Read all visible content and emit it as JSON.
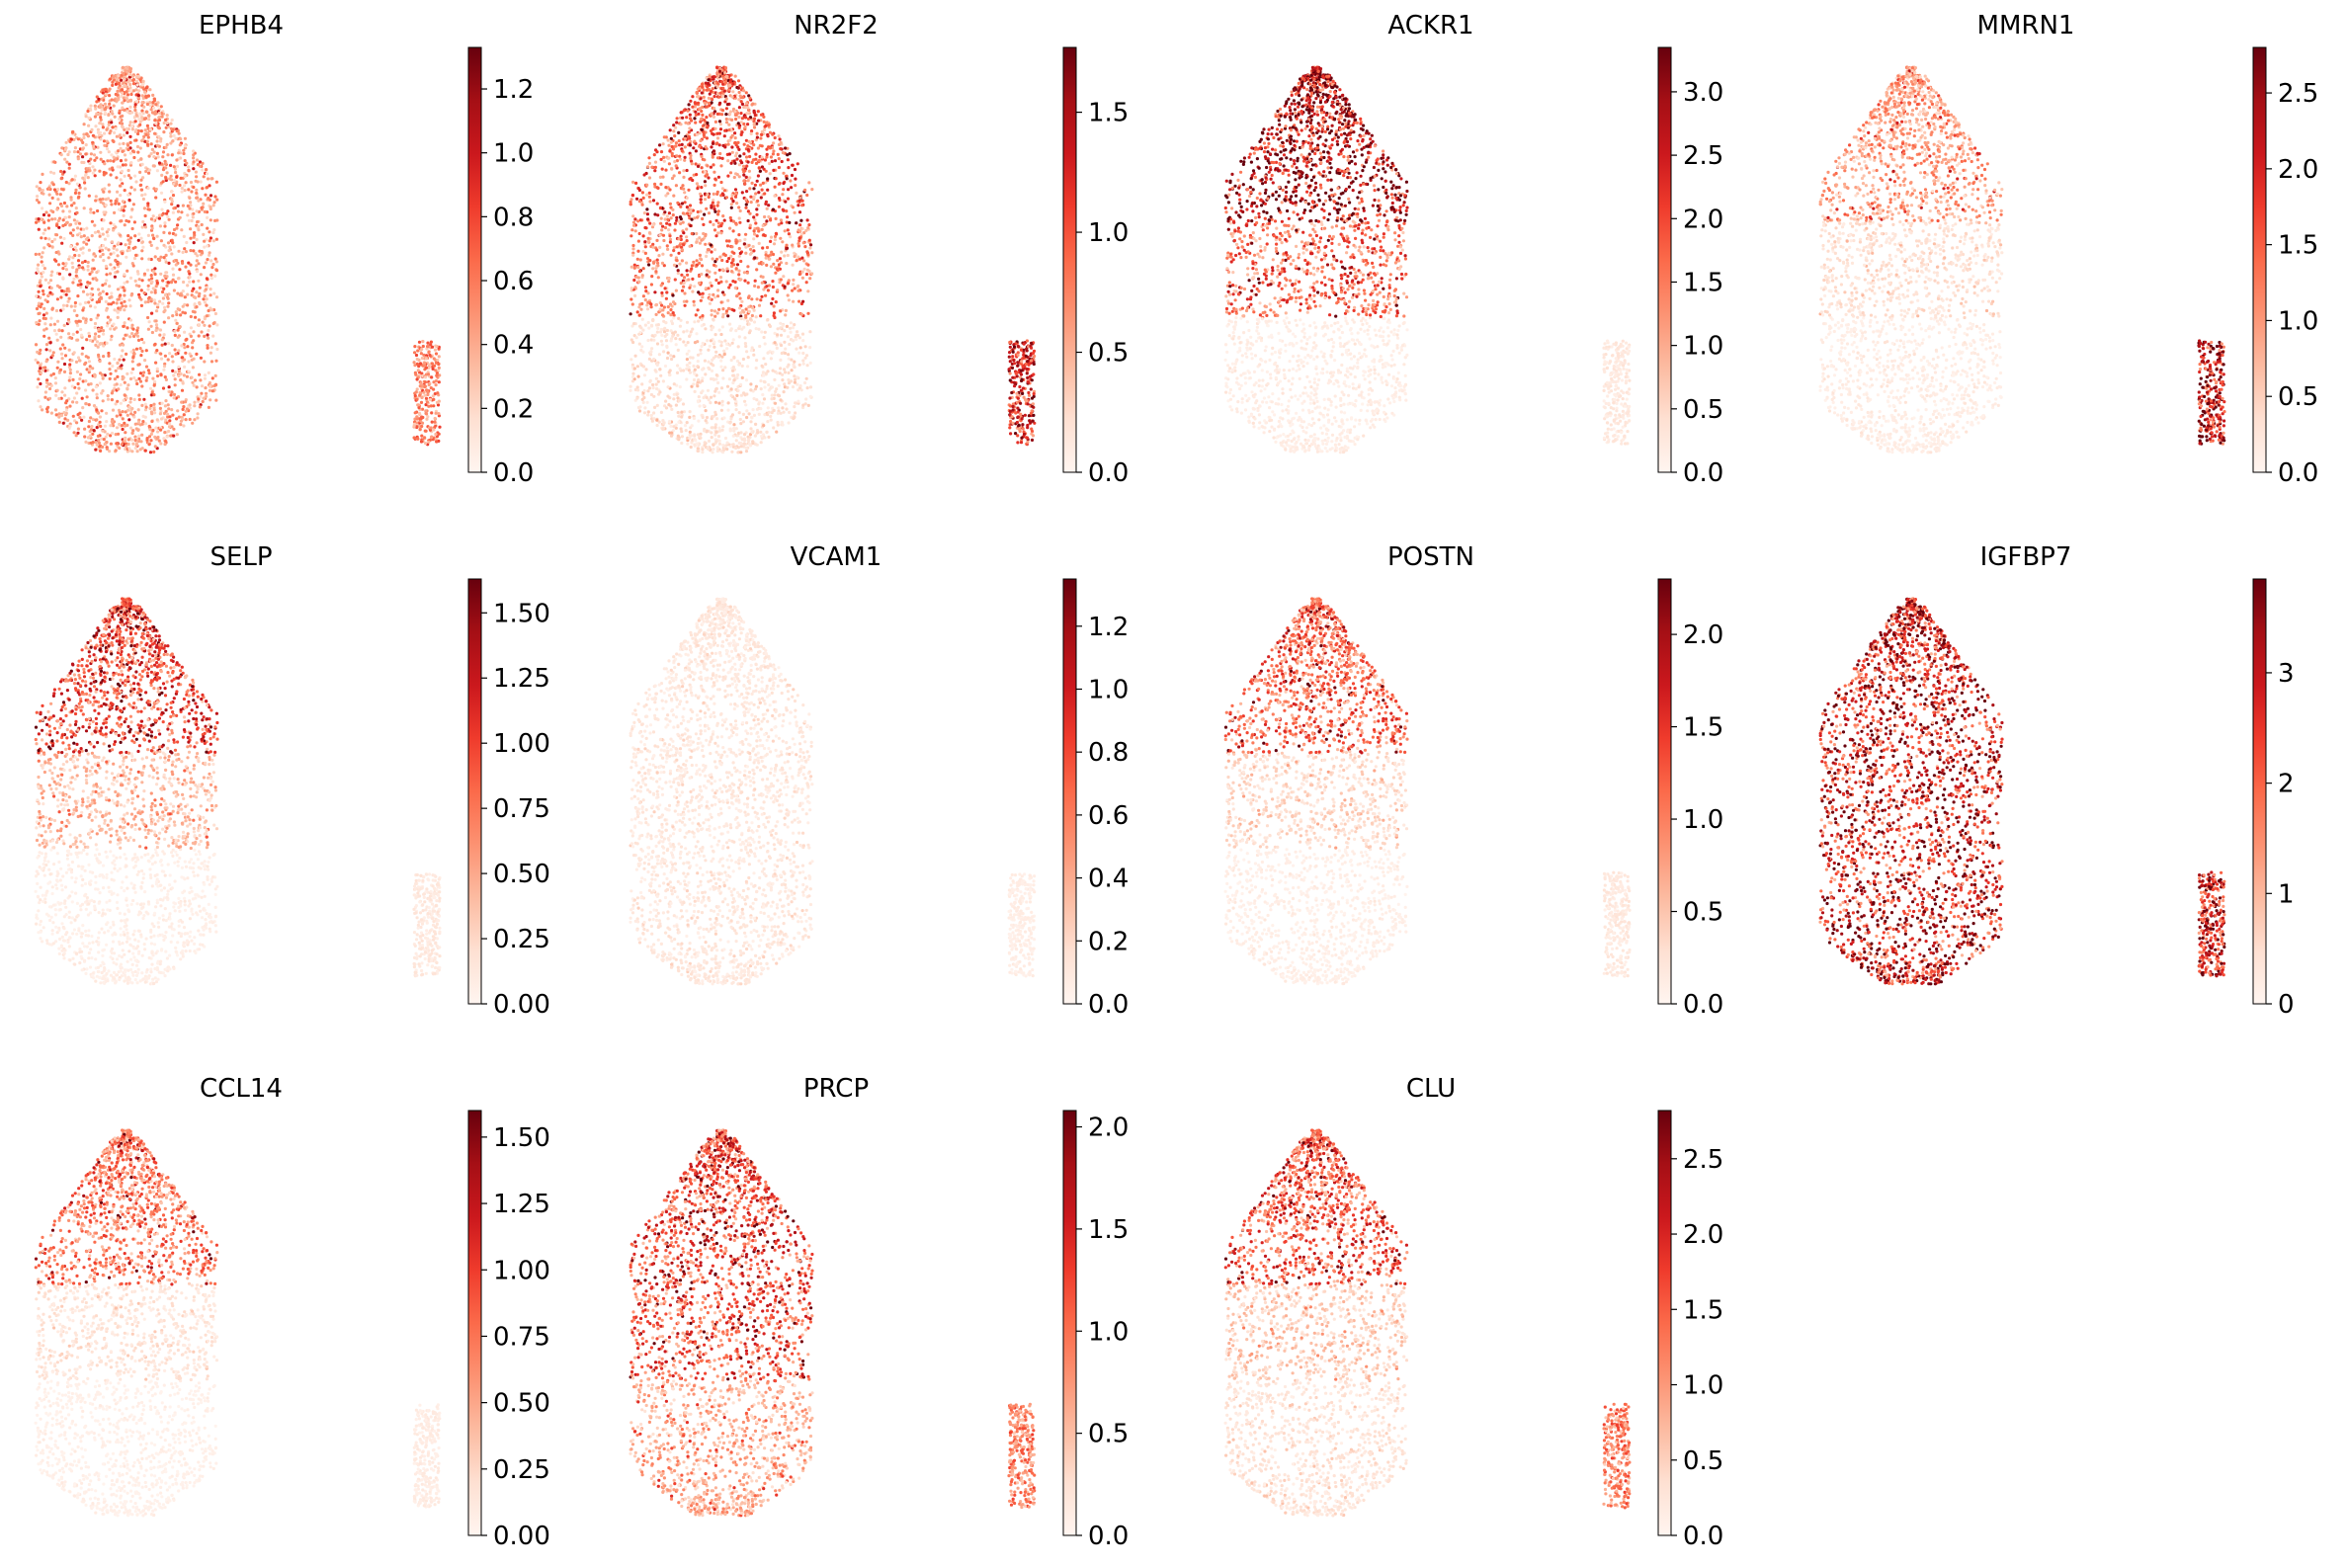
{
  "chart_data": {
    "type": "scatter",
    "colormap": [
      "#fff5f0",
      "#fee0d2",
      "#fcbba1",
      "#fc9272",
      "#fb6a4a",
      "#ef3b2c",
      "#cb181d",
      "#a50f15",
      "#67000d"
    ],
    "axes_visible": false,
    "grid": false,
    "layout_cols": 4,
    "panels": [
      {
        "title": "EPHB4",
        "colorbar_max": 1.33,
        "ticks": [
          0.0,
          0.2,
          0.4,
          0.6,
          0.8,
          1.0,
          1.2
        ],
        "tick_labels": [
          "0.0",
          "0.2",
          "0.4",
          "0.6",
          "0.8",
          "1.0",
          "1.2"
        ],
        "hotspots": [
          {
            "region": "whole",
            "level": 0.35
          }
        ],
        "small_cluster_level": 0.45
      },
      {
        "title": "NR2F2",
        "colorbar_max": 1.77,
        "ticks": [
          0.0,
          0.5,
          1.0,
          1.5
        ],
        "tick_labels": [
          "0.0",
          "0.5",
          "1.0",
          "1.5"
        ],
        "hotspots": [
          {
            "region": "top",
            "level": 0.55
          },
          {
            "region": "middle",
            "level": 0.45
          },
          {
            "region": "bottom",
            "level": 0.12
          }
        ],
        "small_cluster_level": 0.75
      },
      {
        "title": "ACKR1",
        "colorbar_max": 3.35,
        "ticks": [
          0.0,
          0.5,
          1.0,
          1.5,
          2.0,
          2.5,
          3.0
        ],
        "tick_labels": [
          "0.0",
          "0.5",
          "1.0",
          "1.5",
          "2.0",
          "2.5",
          "3.0"
        ],
        "hotspots": [
          {
            "region": "top",
            "level": 0.85
          },
          {
            "region": "middle",
            "level": 0.5
          },
          {
            "region": "bottom",
            "level": 0.05
          }
        ],
        "small_cluster_level": 0.08
      },
      {
        "title": "MMRN1",
        "colorbar_max": 2.8,
        "ticks": [
          0.0,
          0.5,
          1.0,
          1.5,
          2.0,
          2.5
        ],
        "tick_labels": [
          "0.0",
          "0.5",
          "1.0",
          "1.5",
          "2.0",
          "2.5"
        ],
        "hotspots": [
          {
            "region": "top",
            "level": 0.35
          },
          {
            "region": "middle",
            "level": 0.12
          },
          {
            "region": "bottom",
            "level": 0.05
          }
        ],
        "small_cluster_level": 0.85
      },
      {
        "title": "SELP",
        "colorbar_max": 1.63,
        "ticks": [
          0.0,
          0.25,
          0.5,
          0.75,
          1.0,
          1.25,
          1.5
        ],
        "tick_labels": [
          "0.00",
          "0.25",
          "0.50",
          "0.75",
          "1.00",
          "1.25",
          "1.50"
        ],
        "hotspots": [
          {
            "region": "top",
            "level": 0.6
          },
          {
            "region": "middle",
            "level": 0.25
          },
          {
            "region": "bottom",
            "level": 0.04
          }
        ],
        "small_cluster_level": 0.08
      },
      {
        "title": "VCAM1",
        "colorbar_max": 1.35,
        "ticks": [
          0.0,
          0.2,
          0.4,
          0.6,
          0.8,
          1.0,
          1.2
        ],
        "tick_labels": [
          "0.0",
          "0.2",
          "0.4",
          "0.6",
          "0.8",
          "1.0",
          "1.2"
        ],
        "hotspots": [
          {
            "region": "whole",
            "level": 0.08
          }
        ],
        "small_cluster_level": 0.05
      },
      {
        "title": "POSTN",
        "colorbar_max": 2.3,
        "ticks": [
          0.0,
          0.5,
          1.0,
          1.5,
          2.0
        ],
        "tick_labels": [
          "0.0",
          "0.5",
          "1.0",
          "1.5",
          "2.0"
        ],
        "hotspots": [
          {
            "region": "top",
            "level": 0.5
          },
          {
            "region": "middle",
            "level": 0.15
          },
          {
            "region": "bottom",
            "level": 0.04
          }
        ],
        "small_cluster_level": 0.08
      },
      {
        "title": "IGFBP7",
        "colorbar_max": 3.85,
        "ticks": [
          0,
          1,
          2,
          3
        ],
        "tick_labels": [
          "0",
          "1",
          "2",
          "3"
        ],
        "hotspots": [
          {
            "region": "whole",
            "level": 0.75
          }
        ],
        "small_cluster_level": 0.8
      },
      {
        "title": "CCL14",
        "colorbar_max": 1.6,
        "ticks": [
          0.0,
          0.25,
          0.5,
          0.75,
          1.0,
          1.25,
          1.5
        ],
        "tick_labels": [
          "0.00",
          "0.25",
          "0.50",
          "0.75",
          "1.00",
          "1.25",
          "1.50"
        ],
        "hotspots": [
          {
            "region": "top",
            "level": 0.45
          },
          {
            "region": "middle",
            "level": 0.1
          },
          {
            "region": "bottom",
            "level": 0.03
          }
        ],
        "small_cluster_level": 0.06
      },
      {
        "title": "PRCP",
        "colorbar_max": 2.08,
        "ticks": [
          0.0,
          0.5,
          1.0,
          1.5,
          2.0
        ],
        "tick_labels": [
          "0.0",
          "0.5",
          "1.0",
          "1.5",
          "2.0"
        ],
        "hotspots": [
          {
            "region": "top",
            "level": 0.6
          },
          {
            "region": "middle",
            "level": 0.55
          },
          {
            "region": "bottom",
            "level": 0.3
          }
        ],
        "small_cluster_level": 0.45
      },
      {
        "title": "CLU",
        "colorbar_max": 2.82,
        "ticks": [
          0.0,
          0.5,
          1.0,
          1.5,
          2.0,
          2.5
        ],
        "tick_labels": [
          "0.0",
          "0.5",
          "1.0",
          "1.5",
          "2.0",
          "2.5"
        ],
        "hotspots": [
          {
            "region": "top",
            "level": 0.55
          },
          {
            "region": "middle",
            "level": 0.2
          },
          {
            "region": "bottom",
            "level": 0.1
          }
        ],
        "small_cluster_level": 0.45
      }
    ]
  }
}
